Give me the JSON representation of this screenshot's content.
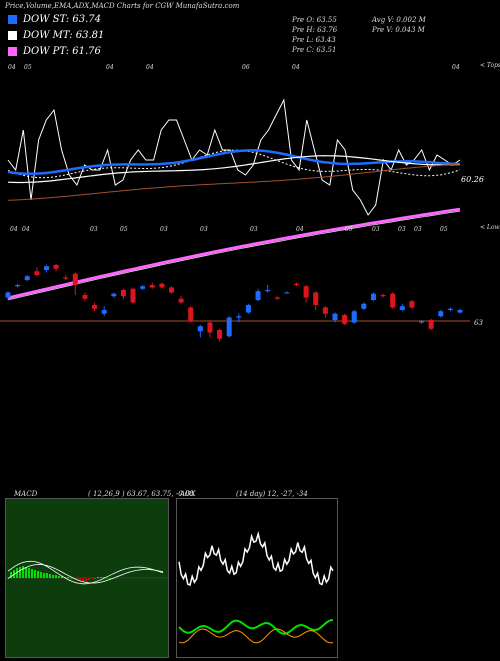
{
  "header": {
    "title": "Price,Volume,EMA,ADX,MACD Charts for CGW MunafaSutra.com"
  },
  "legend": [
    {
      "label": "DOW ST: 63.74",
      "color": "#1e6cff"
    },
    {
      "label": "DOW MT: 63.81",
      "color": "#ffffff"
    },
    {
      "label": "DOW PT: 61.76",
      "color": "#ff66ff"
    }
  ],
  "stats": {
    "col1": [
      "Pre  O: 63.55",
      "Pre  H: 63.76",
      "Pre  L: 63.43",
      "Pre  C: 63.51"
    ],
    "col2": [
      "Avg V: 0.002  M",
      "Pre  V: 0.043 M"
    ]
  },
  "price_chart": {
    "price_label": "60.26",
    "current_label": "63",
    "tops_label": "< Tops",
    "lows_label": "< Lows",
    "top_markers": [
      "04",
      "05",
      "04",
      "04",
      "06",
      "04",
      "04"
    ],
    "low_markers": [
      "04",
      "04",
      "03",
      "05",
      "03",
      "03",
      "03",
      "04",
      "05",
      "03",
      "03",
      "03",
      "05"
    ],
    "colors": {
      "up": "#1e6cff",
      "down": "#e0141e",
      "hline": "#a0522d",
      "ema_st": "#1e6cff",
      "ema_mt": "#ffffff",
      "ema_pt": "#ff66ff",
      "ema_long": "#a0522d"
    }
  },
  "chart_data": {
    "type": "candlestick",
    "candles": [
      {
        "o": 62.2,
        "c": 62.6,
        "h": 62.7,
        "l": 62.0
      },
      {
        "o": 63.1,
        "c": 63.2,
        "h": 63.3,
        "l": 63.0
      },
      {
        "o": 63.6,
        "c": 63.9,
        "h": 64.0,
        "l": 63.5
      },
      {
        "o": 64.3,
        "c": 64.0,
        "h": 64.6,
        "l": 63.9
      },
      {
        "o": 64.4,
        "c": 64.7,
        "h": 64.8,
        "l": 64.2
      },
      {
        "o": 64.8,
        "c": 64.5,
        "h": 64.9,
        "l": 64.3
      },
      {
        "o": 63.8,
        "c": 63.7,
        "h": 64.0,
        "l": 63.6
      },
      {
        "o": 64.1,
        "c": 63.2,
        "h": 64.2,
        "l": 62.4
      },
      {
        "o": 62.4,
        "c": 62.1,
        "h": 62.6,
        "l": 61.9
      },
      {
        "o": 61.6,
        "c": 61.3,
        "h": 61.8,
        "l": 61.1
      },
      {
        "o": 60.9,
        "c": 61.2,
        "h": 61.5,
        "l": 60.7
      },
      {
        "o": 62.3,
        "c": 62.5,
        "h": 62.6,
        "l": 62.2
      },
      {
        "o": 62.8,
        "c": 62.3,
        "h": 62.9,
        "l": 62.1
      },
      {
        "o": 62.9,
        "c": 61.8,
        "h": 63.0,
        "l": 61.7
      },
      {
        "o": 62.9,
        "c": 63.1,
        "h": 63.2,
        "l": 62.8
      },
      {
        "o": 63.2,
        "c": 63.0,
        "h": 63.4,
        "l": 62.9
      },
      {
        "o": 63.3,
        "c": 63.0,
        "h": 63.4,
        "l": 62.9
      },
      {
        "o": 63.0,
        "c": 62.6,
        "h": 63.1,
        "l": 62.5
      },
      {
        "o": 62.1,
        "c": 61.8,
        "h": 62.3,
        "l": 61.7
      },
      {
        "o": 61.4,
        "c": 60.3,
        "h": 61.5,
        "l": 60.2
      },
      {
        "o": 59.5,
        "c": 59.9,
        "h": 60.0,
        "l": 59.0
      },
      {
        "o": 60.2,
        "c": 59.4,
        "h": 60.4,
        "l": 59.0
      },
      {
        "o": 59.6,
        "c": 58.9,
        "h": 59.7,
        "l": 58.7
      },
      {
        "o": 59.1,
        "c": 60.6,
        "h": 60.7,
        "l": 59.0
      },
      {
        "o": 60.6,
        "c": 60.7,
        "h": 60.9,
        "l": 60.2
      },
      {
        "o": 61.0,
        "c": 61.6,
        "h": 61.7,
        "l": 60.9
      },
      {
        "o": 62.0,
        "c": 62.7,
        "h": 62.9,
        "l": 61.9
      },
      {
        "o": 62.7,
        "c": 62.8,
        "h": 63.2,
        "l": 62.6
      },
      {
        "o": 62.2,
        "c": 62.1,
        "h": 62.3,
        "l": 62.0
      },
      {
        "o": 62.6,
        "c": 62.6,
        "h": 62.7,
        "l": 62.5
      },
      {
        "o": 63.3,
        "c": 63.2,
        "h": 63.4,
        "l": 63.1
      },
      {
        "o": 63.1,
        "c": 62.2,
        "h": 63.2,
        "l": 61.8
      },
      {
        "o": 62.6,
        "c": 61.6,
        "h": 62.7,
        "l": 61.2
      },
      {
        "o": 61.4,
        "c": 60.9,
        "h": 61.5,
        "l": 60.6
      },
      {
        "o": 60.4,
        "c": 60.9,
        "h": 61.0,
        "l": 60.2
      },
      {
        "o": 60.8,
        "c": 60.1,
        "h": 60.9,
        "l": 60.0
      },
      {
        "o": 60.2,
        "c": 61.1,
        "h": 61.2,
        "l": 60.1
      },
      {
        "o": 61.3,
        "c": 61.7,
        "h": 61.8,
        "l": 61.2
      },
      {
        "o": 62.0,
        "c": 62.5,
        "h": 62.6,
        "l": 61.9
      },
      {
        "o": 62.4,
        "c": 62.3,
        "h": 62.5,
        "l": 62.2
      },
      {
        "o": 62.5,
        "c": 61.4,
        "h": 62.6,
        "l": 61.3
      },
      {
        "o": 61.2,
        "c": 61.5,
        "h": 61.7,
        "l": 61.1
      },
      {
        "o": 61.9,
        "c": 61.4,
        "h": 62.0,
        "l": 61.3
      },
      {
        "o": 60.2,
        "c": 60.3,
        "h": 60.4,
        "l": 60.1
      },
      {
        "o": 60.4,
        "c": 59.7,
        "h": 60.5,
        "l": 59.6
      },
      {
        "o": 60.7,
        "c": 61.1,
        "h": 61.2,
        "l": 60.6
      },
      {
        "o": 61.2,
        "c": 61.3,
        "h": 61.4,
        "l": 61.1
      },
      {
        "o": 61.0,
        "c": 61.2,
        "h": 61.3,
        "l": 60.9
      }
    ],
    "ylim": [
      58,
      66
    ]
  },
  "macd": {
    "title": "MACD",
    "params": "( 12,26,9 ) 63.67,  63.75,  -0.08",
    "colors": {
      "bg": "#0d3d0d",
      "pos": "#00e000",
      "neg": "#e00000",
      "line": "#ffffff"
    }
  },
  "adx": {
    "title": "ADX",
    "params": "(14  day) 12,  -27,  -34",
    "colors": {
      "adx": "#ffffff",
      "plus": "#00e000",
      "minus": "#ff9900"
    }
  }
}
